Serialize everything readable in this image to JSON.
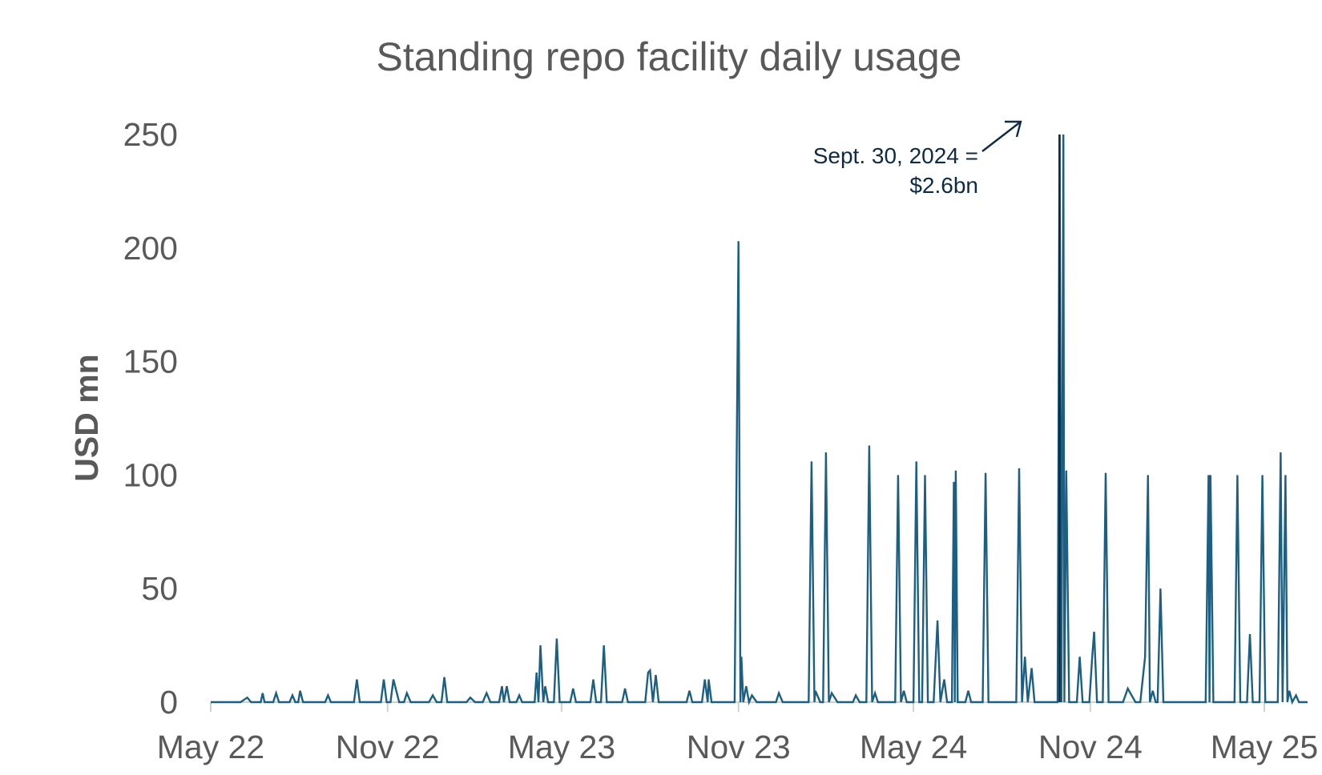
{
  "chart_data": {
    "type": "line",
    "title": "Standing repo facility daily usage",
    "xlabel": "",
    "ylabel": "USD mn",
    "xlim": [
      "2022-05-01",
      "2025-05-01"
    ],
    "ylim": [
      0,
      250
    ],
    "yticks": [
      0,
      50,
      100,
      150,
      200,
      250
    ],
    "xticks": [
      {
        "date": "2022-05-01",
        "label": "May 22"
      },
      {
        "date": "2022-11-01",
        "label": "Nov 22"
      },
      {
        "date": "2023-05-01",
        "label": "May 23"
      },
      {
        "date": "2023-11-01",
        "label": "Nov 23"
      },
      {
        "date": "2024-05-01",
        "label": "May 24"
      },
      {
        "date": "2024-11-01",
        "label": "Nov 24"
      },
      {
        "date": "2025-05-01",
        "label": "May 25"
      }
    ],
    "grid": false,
    "legend": "none",
    "series_color": "#1c5f82",
    "annotation": {
      "lines": [
        "Sept. 30, 2024 =",
        "$2.6bn"
      ],
      "date": "2024-09-30",
      "value": 2600,
      "color": "#0d2b45"
    },
    "series": [
      {
        "values": [
          [
            "2022-05-01",
            0
          ],
          [
            "2022-06-01",
            0
          ],
          [
            "2022-06-08",
            2
          ],
          [
            "2022-06-12",
            0
          ],
          [
            "2022-06-22",
            0
          ],
          [
            "2022-06-24",
            4
          ],
          [
            "2022-06-26",
            0
          ],
          [
            "2022-07-05",
            0
          ],
          [
            "2022-07-08",
            4
          ],
          [
            "2022-07-11",
            0
          ],
          [
            "2022-07-22",
            0
          ],
          [
            "2022-07-25",
            3
          ],
          [
            "2022-07-28",
            0
          ],
          [
            "2022-07-31",
            0
          ],
          [
            "2022-08-02",
            5
          ],
          [
            "2022-08-05",
            0
          ],
          [
            "2022-08-28",
            0
          ],
          [
            "2022-08-31",
            3
          ],
          [
            "2022-09-03",
            0
          ],
          [
            "2022-09-27",
            0
          ],
          [
            "2022-09-30",
            10
          ],
          [
            "2022-10-03",
            0
          ],
          [
            "2022-10-25",
            0
          ],
          [
            "2022-10-28",
            10
          ],
          [
            "2022-10-31",
            0
          ],
          [
            "2022-11-04",
            0
          ],
          [
            "2022-11-07",
            10
          ],
          [
            "2022-11-13",
            0
          ],
          [
            "2022-11-18",
            0
          ],
          [
            "2022-11-21",
            4
          ],
          [
            "2022-11-25",
            0
          ],
          [
            "2022-12-14",
            0
          ],
          [
            "2022-12-18",
            3
          ],
          [
            "2022-12-22",
            0
          ],
          [
            "2022-12-27",
            0
          ],
          [
            "2022-12-30",
            11
          ],
          [
            "2023-01-02",
            0
          ],
          [
            "2023-01-22",
            0
          ],
          [
            "2023-01-26",
            2
          ],
          [
            "2023-01-31",
            0
          ],
          [
            "2023-02-08",
            0
          ],
          [
            "2023-02-12",
            4
          ],
          [
            "2023-02-16",
            0
          ],
          [
            "2023-02-25",
            0
          ],
          [
            "2023-02-28",
            7
          ],
          [
            "2023-03-02",
            0
          ],
          [
            "2023-03-05",
            7
          ],
          [
            "2023-03-08",
            0
          ],
          [
            "2023-03-15",
            0
          ],
          [
            "2023-03-18",
            3
          ],
          [
            "2023-03-21",
            0
          ],
          [
            "2023-04-03",
            0
          ],
          [
            "2023-04-05",
            13
          ],
          [
            "2023-04-07",
            0
          ],
          [
            "2023-04-09",
            25
          ],
          [
            "2023-04-12",
            0
          ],
          [
            "2023-04-14",
            7
          ],
          [
            "2023-04-17",
            0
          ],
          [
            "2023-04-23",
            0
          ],
          [
            "2023-04-26",
            28
          ],
          [
            "2023-04-29",
            0
          ],
          [
            "2023-05-10",
            0
          ],
          [
            "2023-05-13",
            6
          ],
          [
            "2023-05-16",
            0
          ],
          [
            "2023-05-31",
            0
          ],
          [
            "2023-06-03",
            10
          ],
          [
            "2023-06-06",
            0
          ],
          [
            "2023-06-11",
            0
          ],
          [
            "2023-06-14",
            25
          ],
          [
            "2023-06-17",
            0
          ],
          [
            "2023-07-03",
            0
          ],
          [
            "2023-07-06",
            6
          ],
          [
            "2023-07-09",
            0
          ],
          [
            "2023-07-27",
            0
          ],
          [
            "2023-07-30",
            13
          ],
          [
            "2023-08-01",
            14
          ],
          [
            "2023-08-04",
            0
          ],
          [
            "2023-08-07",
            12
          ],
          [
            "2023-08-10",
            0
          ],
          [
            "2023-09-08",
            0
          ],
          [
            "2023-09-11",
            5
          ],
          [
            "2023-09-14",
            0
          ],
          [
            "2023-09-24",
            0
          ],
          [
            "2023-09-27",
            10
          ],
          [
            "2023-09-30",
            0
          ],
          [
            "2023-10-01",
            10
          ],
          [
            "2023-10-04",
            0
          ],
          [
            "2023-10-28",
            0
          ],
          [
            "2023-11-01",
            203
          ],
          [
            "2023-11-03",
            0
          ],
          [
            "2023-11-04",
            20
          ],
          [
            "2023-11-06",
            0
          ],
          [
            "2023-11-09",
            7
          ],
          [
            "2023-11-12",
            0
          ],
          [
            "2023-11-15",
            3
          ],
          [
            "2023-11-20",
            0
          ],
          [
            "2023-12-10",
            0
          ],
          [
            "2023-12-13",
            4
          ],
          [
            "2023-12-17",
            0
          ],
          [
            "2024-01-13",
            0
          ],
          [
            "2024-01-16",
            106
          ],
          [
            "2024-01-19",
            0
          ],
          [
            "2024-01-20",
            5
          ],
          [
            "2024-01-25",
            0
          ],
          [
            "2024-01-28",
            0
          ],
          [
            "2024-01-31",
            110
          ],
          [
            "2024-02-03",
            0
          ],
          [
            "2024-02-06",
            4
          ],
          [
            "2024-02-12",
            0
          ],
          [
            "2024-02-28",
            0
          ],
          [
            "2024-03-02",
            3
          ],
          [
            "2024-03-06",
            0
          ],
          [
            "2024-03-13",
            0
          ],
          [
            "2024-03-16",
            113
          ],
          [
            "2024-03-19",
            0
          ],
          [
            "2024-03-22",
            4
          ],
          [
            "2024-03-25",
            0
          ],
          [
            "2024-04-12",
            0
          ],
          [
            "2024-04-15",
            100
          ],
          [
            "2024-04-18",
            0
          ],
          [
            "2024-04-21",
            5
          ],
          [
            "2024-04-24",
            0
          ],
          [
            "2024-05-01",
            0
          ],
          [
            "2024-05-04",
            106
          ],
          [
            "2024-05-07",
            0
          ],
          [
            "2024-05-10",
            0
          ],
          [
            "2024-05-13",
            100
          ],
          [
            "2024-05-16",
            0
          ],
          [
            "2024-05-22",
            0
          ],
          [
            "2024-05-26",
            36
          ],
          [
            "2024-05-29",
            0
          ],
          [
            "2024-06-02",
            10
          ],
          [
            "2024-06-05",
            0
          ],
          [
            "2024-06-10",
            0
          ],
          [
            "2024-06-12",
            97
          ],
          [
            "2024-06-13",
            0
          ],
          [
            "2024-06-14",
            102
          ],
          [
            "2024-06-16",
            0
          ],
          [
            "2024-06-24",
            0
          ],
          [
            "2024-06-27",
            5
          ],
          [
            "2024-06-30",
            0
          ],
          [
            "2024-07-12",
            0
          ],
          [
            "2024-07-15",
            101
          ],
          [
            "2024-07-18",
            0
          ],
          [
            "2024-08-16",
            0
          ],
          [
            "2024-08-19",
            103
          ],
          [
            "2024-08-22",
            0
          ],
          [
            "2024-08-25",
            20
          ],
          [
            "2024-08-28",
            0
          ],
          [
            "2024-09-01",
            15
          ],
          [
            "2024-09-04",
            0
          ],
          [
            "2024-09-28",
            0
          ],
          [
            "2024-09-30",
            250
          ],
          [
            "2024-10-02",
            0
          ],
          [
            "2024-10-04",
            250
          ],
          [
            "2024-10-05",
            0
          ],
          [
            "2024-10-07",
            102
          ],
          [
            "2024-10-10",
            0
          ],
          [
            "2024-10-18",
            0
          ],
          [
            "2024-10-21",
            20
          ],
          [
            "2024-10-24",
            0
          ],
          [
            "2024-10-31",
            0
          ],
          [
            "2024-11-03",
            20
          ],
          [
            "2024-11-05",
            31
          ],
          [
            "2024-11-08",
            0
          ],
          [
            "2024-11-14",
            0
          ],
          [
            "2024-11-17",
            101
          ],
          [
            "2024-11-20",
            0
          ],
          [
            "2024-12-05",
            0
          ],
          [
            "2024-12-10",
            6
          ],
          [
            "2024-12-18",
            0
          ],
          [
            "2024-12-23",
            0
          ],
          [
            "2024-12-28",
            20
          ],
          [
            "2024-12-31",
            100
          ],
          [
            "2025-01-02",
            0
          ],
          [
            "2025-01-05",
            5
          ],
          [
            "2025-01-08",
            0
          ],
          [
            "2025-01-10",
            0
          ],
          [
            "2025-01-13",
            50
          ],
          [
            "2025-01-16",
            0
          ],
          [
            "2025-03-01",
            0
          ],
          [
            "2025-03-04",
            100
          ],
          [
            "2025-03-05",
            0
          ],
          [
            "2025-03-06",
            100
          ],
          [
            "2025-03-09",
            0
          ],
          [
            "2025-03-31",
            0
          ],
          [
            "2025-04-03",
            100
          ],
          [
            "2025-04-06",
            0
          ],
          [
            "2025-04-13",
            0
          ],
          [
            "2025-04-16",
            30
          ],
          [
            "2025-04-19",
            0
          ],
          [
            "2025-04-26",
            0
          ],
          [
            "2025-04-29",
            100
          ],
          [
            "2025-05-02",
            0
          ],
          [
            "2025-05-15",
            0
          ],
          [
            "2025-05-18",
            110
          ],
          [
            "2025-05-20",
            0
          ],
          [
            "2025-05-23",
            100
          ],
          [
            "2025-05-25",
            0
          ],
          [
            "2025-05-27",
            5
          ],
          [
            "2025-05-30",
            0
          ],
          [
            "2025-06-03",
            3
          ],
          [
            "2025-06-06",
            0
          ],
          [
            "2025-06-15",
            0
          ]
        ]
      }
    ]
  }
}
